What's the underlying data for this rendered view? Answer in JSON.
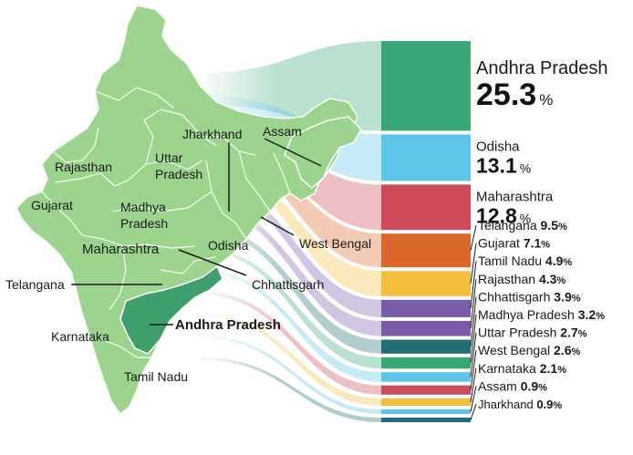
{
  "chart_data": {
    "type": "bar",
    "unit": "%",
    "categories": [
      "Andhra Pradesh",
      "Odisha",
      "Maharashtra",
      "Telangana",
      "Gujarat",
      "Tamil Nadu",
      "Rajasthan",
      "Chhattisgarh",
      "Madhya Pradesh",
      "Uttar Pradesh",
      "West Bengal",
      "Karnataka",
      "Assam",
      "Jharkhand"
    ],
    "values": [
      25.3,
      13.1,
      12.8,
      9.5,
      7.1,
      4.9,
      4.3,
      3.9,
      3.2,
      2.7,
      2.6,
      2.1,
      0.9,
      0.9
    ],
    "colors": [
      "#3aa876",
      "#5ec4e8",
      "#cc4a5a",
      "#d9682a",
      "#f4bd3b",
      "#7a5ca8",
      "#7a5ca8",
      "#1f6f74",
      "#3aa876",
      "#5ec4e8",
      "#cc4a5a",
      "#f4bd3b",
      "#5ec4e8",
      "#1f6f74"
    ],
    "map_labels": [
      "Jharkhand",
      "Assam",
      "Uttar Pradesh",
      "Rajasthan",
      "Gujarat",
      "Madhya Pradesh",
      "West Bengal",
      "Maharashtra",
      "Odisha",
      "Telangana",
      "Chhattisgarh",
      "Andhra Pradesh",
      "Karnataka",
      "Tamil Nadu"
    ]
  }
}
